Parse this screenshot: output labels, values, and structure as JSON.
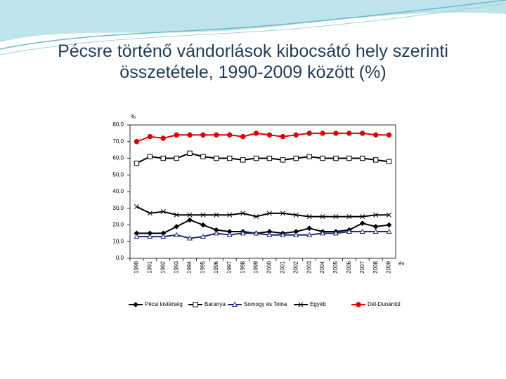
{
  "chart_data": {
    "type": "line",
    "title": "Pécsre történő vándorlások kibocsátó hely szerinti összetétele, 1990-2009 között (%)",
    "y_label": "%",
    "x_label": "év",
    "categories": [
      "1990",
      "1991",
      "1992",
      "1993",
      "1994",
      "1995",
      "1996",
      "1997",
      "1998",
      "1999",
      "2000",
      "2001",
      "2002",
      "2003",
      "2004",
      "2005",
      "2006",
      "2007",
      "2008",
      "2009"
    ],
    "ylim": [
      0,
      80
    ],
    "yticks": [
      {
        "value": 0,
        "label": "0,0"
      },
      {
        "value": 10,
        "label": "10,0"
      },
      {
        "value": 20,
        "label": "20,0"
      },
      {
        "value": 30,
        "label": "30,0"
      },
      {
        "value": 40,
        "label": "40,0"
      },
      {
        "value": 50,
        "label": "50,0"
      },
      {
        "value": 60,
        "label": "60,0"
      },
      {
        "value": 70,
        "label": "70,0"
      },
      {
        "value": 80,
        "label": "80,0"
      }
    ],
    "grid": false,
    "legend": "bottom",
    "series": [
      {
        "name": "Pécsi kistérség",
        "color": "#000000",
        "marker": "diamond",
        "values": [
          15,
          15,
          15,
          19,
          23,
          20,
          17,
          16,
          16,
          15,
          16,
          15,
          16,
          18,
          16,
          16,
          17,
          21,
          19,
          20
        ]
      },
      {
        "name": "Baranya",
        "color": "#000000",
        "marker": "square",
        "values": [
          57,
          61,
          60,
          60,
          63,
          61,
          60,
          60,
          59,
          60,
          60,
          59,
          60,
          61,
          60,
          60,
          60,
          60,
          59,
          58
        ]
      },
      {
        "name": "Somogy és Tolna",
        "color": "#1f2a7a",
        "marker": "triangle",
        "values": [
          13,
          13,
          13,
          14,
          12,
          13,
          15,
          14,
          15,
          15,
          14,
          14,
          14,
          14,
          15,
          15,
          16,
          16,
          16,
          16
        ]
      },
      {
        "name": "Egyéb",
        "color": "#000000",
        "marker": "cross",
        "values": [
          31,
          27,
          28,
          26,
          26,
          26,
          26,
          26,
          27,
          25,
          27,
          27,
          26,
          25,
          25,
          25,
          25,
          25,
          26,
          26
        ]
      },
      {
        "name": "Dél-Dunántúl",
        "color": "#e00000",
        "marker": "circle",
        "values": [
          70,
          73,
          72,
          74,
          74,
          74,
          74,
          74,
          73,
          75,
          74,
          73,
          74,
          75,
          75,
          75,
          75,
          75,
          74,
          74
        ]
      }
    ]
  }
}
